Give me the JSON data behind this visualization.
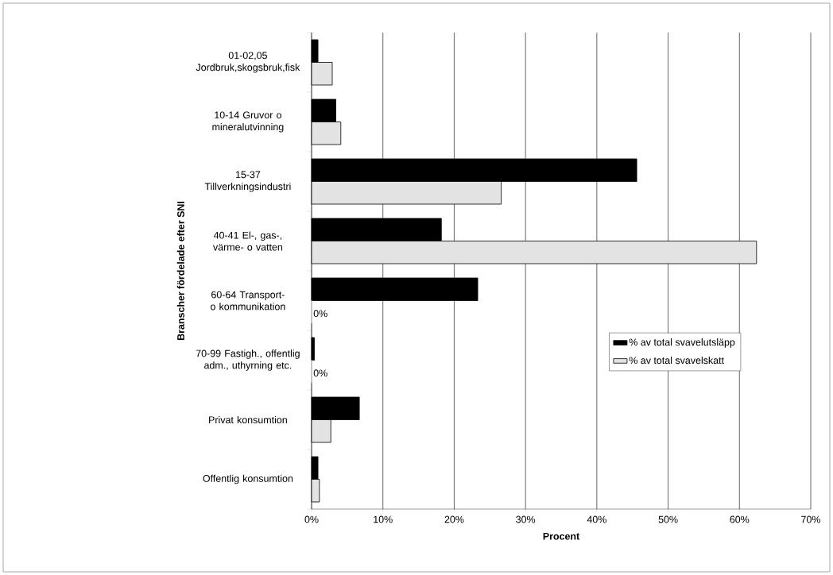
{
  "chart_data": {
    "type": "bar",
    "orientation": "horizontal",
    "xlabel": "Procent",
    "ylabel": "Branscher fördelade efter SNI",
    "categories": [
      "01-02,05 Jordbruk,skogsbruk,fisk",
      "10-14 Gruvor o mineralutvinning",
      "15-37 Tillverkningsindustri",
      "40-41 El-, gas-, värme- o vatten",
      "60-64 Transport- o kommunikation",
      "70-99 Fastigh., offentlig adm., uthyrning etc.",
      "Privat konsumtion",
      "Offentlig konsumtion"
    ],
    "series": [
      {
        "name": "% av total svavelutsläpp",
        "color": "#000000",
        "values": [
          0.9,
          3.4,
          45.6,
          18.2,
          23.3,
          0.4,
          6.7,
          0.9
        ]
      },
      {
        "name": "% av total svavelskatt",
        "color": "#e3e3e3",
        "values": [
          2.9,
          4.1,
          26.6,
          62.4,
          0,
          0,
          2.7,
          1.1
        ],
        "value_labels": [
          null,
          null,
          null,
          null,
          "0%",
          "0%",
          null,
          null
        ]
      }
    ],
    "xlim": [
      0,
      70
    ],
    "xticks": [
      {
        "value": 0,
        "label": "0%"
      },
      {
        "value": 10,
        "label": "10%"
      },
      {
        "value": 20,
        "label": "20%"
      },
      {
        "value": 30,
        "label": "30%"
      },
      {
        "value": 40,
        "label": "40%"
      },
      {
        "value": 50,
        "label": "50%"
      },
      {
        "value": 60,
        "label": "60%"
      },
      {
        "value": 70,
        "label": "70%"
      }
    ],
    "grid": "x",
    "legend": "right"
  }
}
